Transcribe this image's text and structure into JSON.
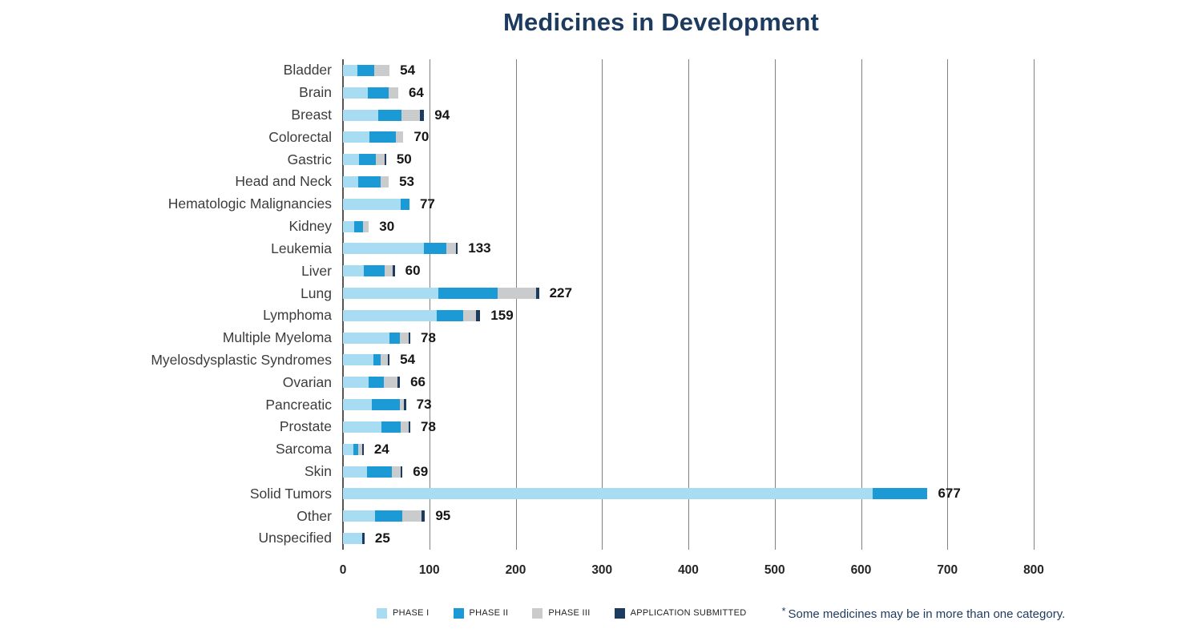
{
  "title": "Medicines in Development",
  "chart_data": {
    "type": "bar",
    "orientation": "horizontal",
    "stacked": true,
    "title": "Medicines in Development",
    "xlabel": "",
    "ylabel": "",
    "xlim": [
      0,
      800
    ],
    "xticks": [
      0,
      100,
      200,
      300,
      400,
      500,
      600,
      700,
      800
    ],
    "grid": "vertical-gridlines-on",
    "legend_position": "bottom",
    "categories": [
      "Bladder",
      "Brain",
      "Breast",
      "Colorectal",
      "Gastric",
      "Head and Neck",
      "Hematologic Malignancies",
      "Kidney",
      "Leukemia",
      "Liver",
      "Lung",
      "Lymphoma",
      "Multiple Myeloma",
      "Myelosdysplastic Syndromes",
      "Ovarian",
      "Pancreatic",
      "Prostate",
      "Sarcoma",
      "Skin",
      "Solid Tumors",
      "Other",
      "Unspecified"
    ],
    "totals": [
      54,
      64,
      94,
      70,
      50,
      53,
      77,
      30,
      133,
      60,
      227,
      159,
      78,
      54,
      66,
      73,
      78,
      24,
      69,
      677,
      95,
      25
    ],
    "series": [
      {
        "name": "PHASE I",
        "values": [
          17,
          29,
          41,
          31,
          19,
          18,
          67,
          13,
          94,
          24,
          110,
          109,
          54,
          35,
          30,
          33,
          45,
          12,
          28,
          613,
          37,
          22
        ]
      },
      {
        "name": "PHASE II",
        "values": [
          19,
          24,
          27,
          30,
          19,
          26,
          10,
          10,
          26,
          24,
          69,
          30,
          12,
          9,
          17,
          33,
          22,
          6,
          29,
          64,
          32,
          0
        ]
      },
      {
        "name": "PHASE III",
        "values": [
          18,
          11,
          21,
          9,
          10,
          9,
          0,
          7,
          11,
          10,
          45,
          15,
          10,
          8,
          16,
          5,
          9,
          4,
          10,
          0,
          22,
          0
        ]
      },
      {
        "name": "APPLICATION SUBMITTED",
        "values": [
          0,
          0,
          5,
          0,
          2,
          0,
          0,
          0,
          2,
          2,
          3,
          5,
          2,
          2,
          3,
          2,
          2,
          2,
          2,
          0,
          4,
          3
        ]
      }
    ]
  },
  "legend": {
    "items": [
      {
        "label": "PHASE I",
        "color": "#a7dcf2"
      },
      {
        "label": "PHASE II",
        "color": "#1b9ad6"
      },
      {
        "label": "PHASE III",
        "color": "#c9cbcd"
      },
      {
        "label": "APPLICATION SUBMITTED",
        "color": "#1d3b5f"
      }
    ]
  },
  "note": {
    "asterisk": "*",
    "text": "Some medicines may be in more than one category."
  },
  "colors": {
    "phase1": "#a7dcf2",
    "phase2": "#1b9ad6",
    "phase3": "#c9cbcd",
    "app_submitted": "#1d3b5f",
    "title_navy": "#1d3b5f",
    "gridline": "#828282"
  }
}
